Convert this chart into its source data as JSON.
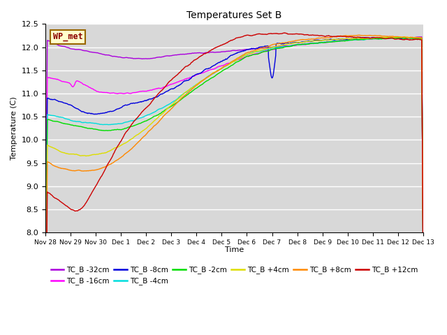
{
  "title": "Temperatures Set B",
  "xlabel": "Time",
  "ylabel": "Temperature (C)",
  "ylim": [
    8.0,
    12.5
  ],
  "background_color": "#d8d8d8",
  "annotation_text": "WP_met",
  "annotation_color": "#8b0000",
  "annotation_bg": "#ffffcc",
  "series": {
    "TC_B -32cm": {
      "color": "#aa00dd",
      "lw": 1.0
    },
    "TC_B -16cm": {
      "color": "#ff00ff",
      "lw": 1.0
    },
    "TC_B -8cm": {
      "color": "#0000dd",
      "lw": 1.0
    },
    "TC_B -4cm": {
      "color": "#00dddd",
      "lw": 1.0
    },
    "TC_B -2cm": {
      "color": "#00dd00",
      "lw": 1.0
    },
    "TC_B +4cm": {
      "color": "#dddd00",
      "lw": 1.0
    },
    "TC_B +8cm": {
      "color": "#ff8800",
      "lw": 1.0
    },
    "TC_B +12cm": {
      "color": "#cc0000",
      "lw": 1.0
    }
  },
  "x_ticks": [
    "Nov 28",
    "Nov 29",
    "Nov 30",
    "Dec 1",
    "Dec 2",
    "Dec 3",
    "Dec 4",
    "Dec 5",
    "Dec 6",
    "Dec 7",
    "Dec 8",
    "Dec 9",
    "Dec 10",
    "Dec 11",
    "Dec 12",
    "Dec 13"
  ],
  "legend_order": [
    "TC_B -32cm",
    "TC_B -16cm",
    "TC_B -8cm",
    "TC_B -4cm",
    "TC_B -2cm",
    "TC_B +4cm",
    "TC_B +8cm",
    "TC_B +12cm"
  ]
}
